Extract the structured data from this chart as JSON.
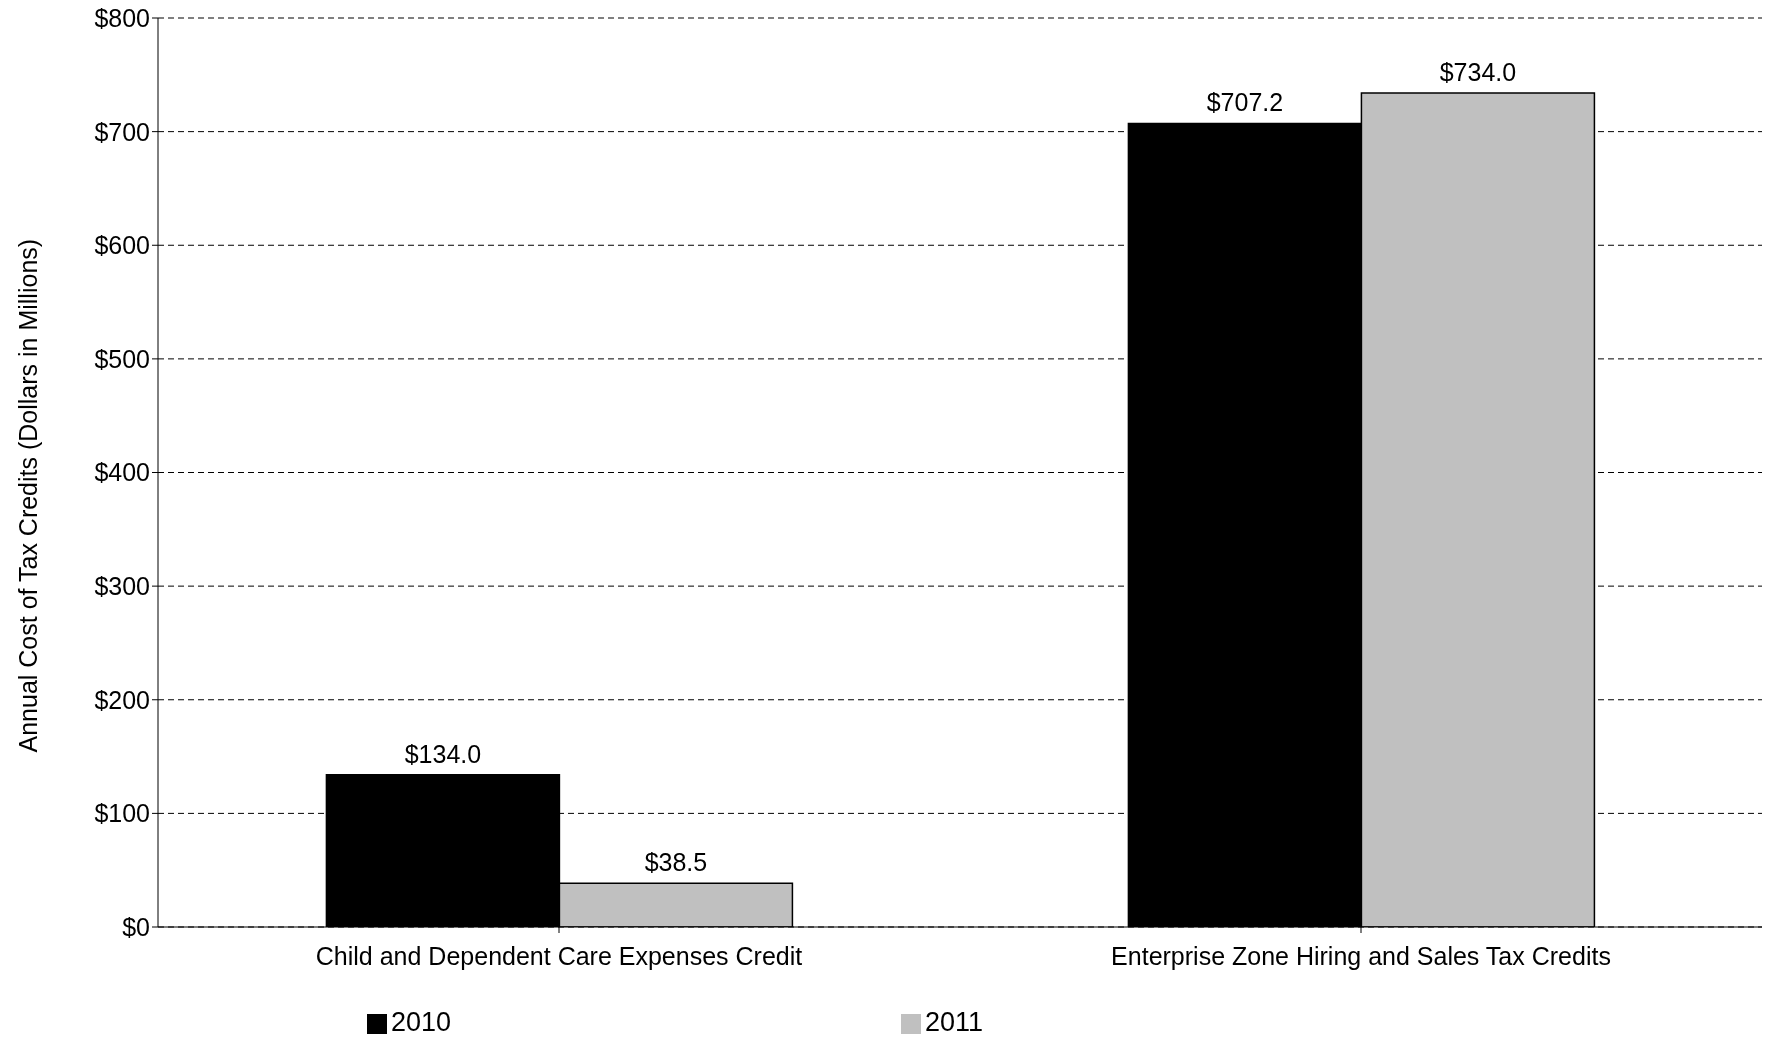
{
  "chart_data": {
    "type": "bar",
    "ylabel": "Annual Cost of Tax Credits (Dollars in Millions)",
    "categories": [
      "Child and Dependent Care Expenses Credit",
      "Enterprise Zone Hiring and Sales Tax Credits"
    ],
    "series": [
      {
        "name": "2010",
        "color": "#000000",
        "values": [
          134.0,
          707.2
        ],
        "value_labels": [
          "$134.0",
          "$707.2"
        ]
      },
      {
        "name": "2011",
        "color": "#c0c0c0",
        "values": [
          38.5,
          734.0
        ],
        "value_labels": [
          "$38.5",
          "$734.0"
        ]
      }
    ],
    "ylim": [
      0,
      800
    ],
    "yticks": [
      {
        "value": 0,
        "label": "$0"
      },
      {
        "value": 100,
        "label": "$100"
      },
      {
        "value": 200,
        "label": "$200"
      },
      {
        "value": 300,
        "label": "$300"
      },
      {
        "value": 400,
        "label": "$400"
      },
      {
        "value": 500,
        "label": "$500"
      },
      {
        "value": 600,
        "label": "$600"
      },
      {
        "value": 700,
        "label": "$700"
      },
      {
        "value": 800,
        "label": "$800"
      }
    ],
    "grid": "y",
    "legend": "bottom"
  }
}
